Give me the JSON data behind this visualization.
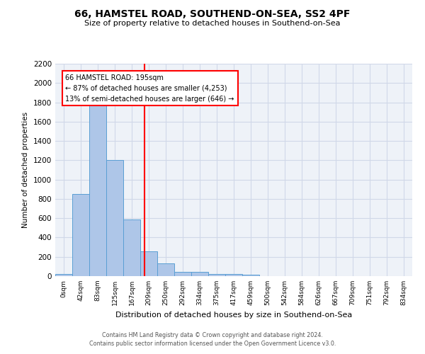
{
  "title": "66, HAMSTEL ROAD, SOUTHEND-ON-SEA, SS2 4PF",
  "subtitle": "Size of property relative to detached houses in Southend-on-Sea",
  "xlabel": "Distribution of detached houses by size in Southend-on-Sea",
  "ylabel": "Number of detached properties",
  "bar_labels": [
    "0sqm",
    "42sqm",
    "83sqm",
    "125sqm",
    "167sqm",
    "209sqm",
    "250sqm",
    "292sqm",
    "334sqm",
    "375sqm",
    "417sqm",
    "459sqm",
    "500sqm",
    "542sqm",
    "584sqm",
    "626sqm",
    "667sqm",
    "709sqm",
    "751sqm",
    "792sqm",
    "834sqm"
  ],
  "bar_heights": [
    25,
    850,
    1800,
    1200,
    590,
    255,
    130,
    45,
    45,
    25,
    20,
    15,
    0,
    0,
    0,
    0,
    0,
    0,
    0,
    0,
    0
  ],
  "bar_color": "#aec6e8",
  "bar_edge_color": "#5a9fd4",
  "vline_x": 4.75,
  "vline_color": "red",
  "annotation_text": "66 HAMSTEL ROAD: 195sqm\n← 87% of detached houses are smaller (4,253)\n13% of semi-detached houses are larger (646) →",
  "annotation_box_color": "white",
  "annotation_box_edge": "red",
  "ylim": [
    0,
    2200
  ],
  "yticks": [
    0,
    200,
    400,
    600,
    800,
    1000,
    1200,
    1400,
    1600,
    1800,
    2000,
    2200
  ],
  "grid_color": "#d0d8e8",
  "bg_color": "#eef2f8",
  "footer_line1": "Contains HM Land Registry data © Crown copyright and database right 2024.",
  "footer_line2": "Contains public sector information licensed under the Open Government Licence v3.0."
}
